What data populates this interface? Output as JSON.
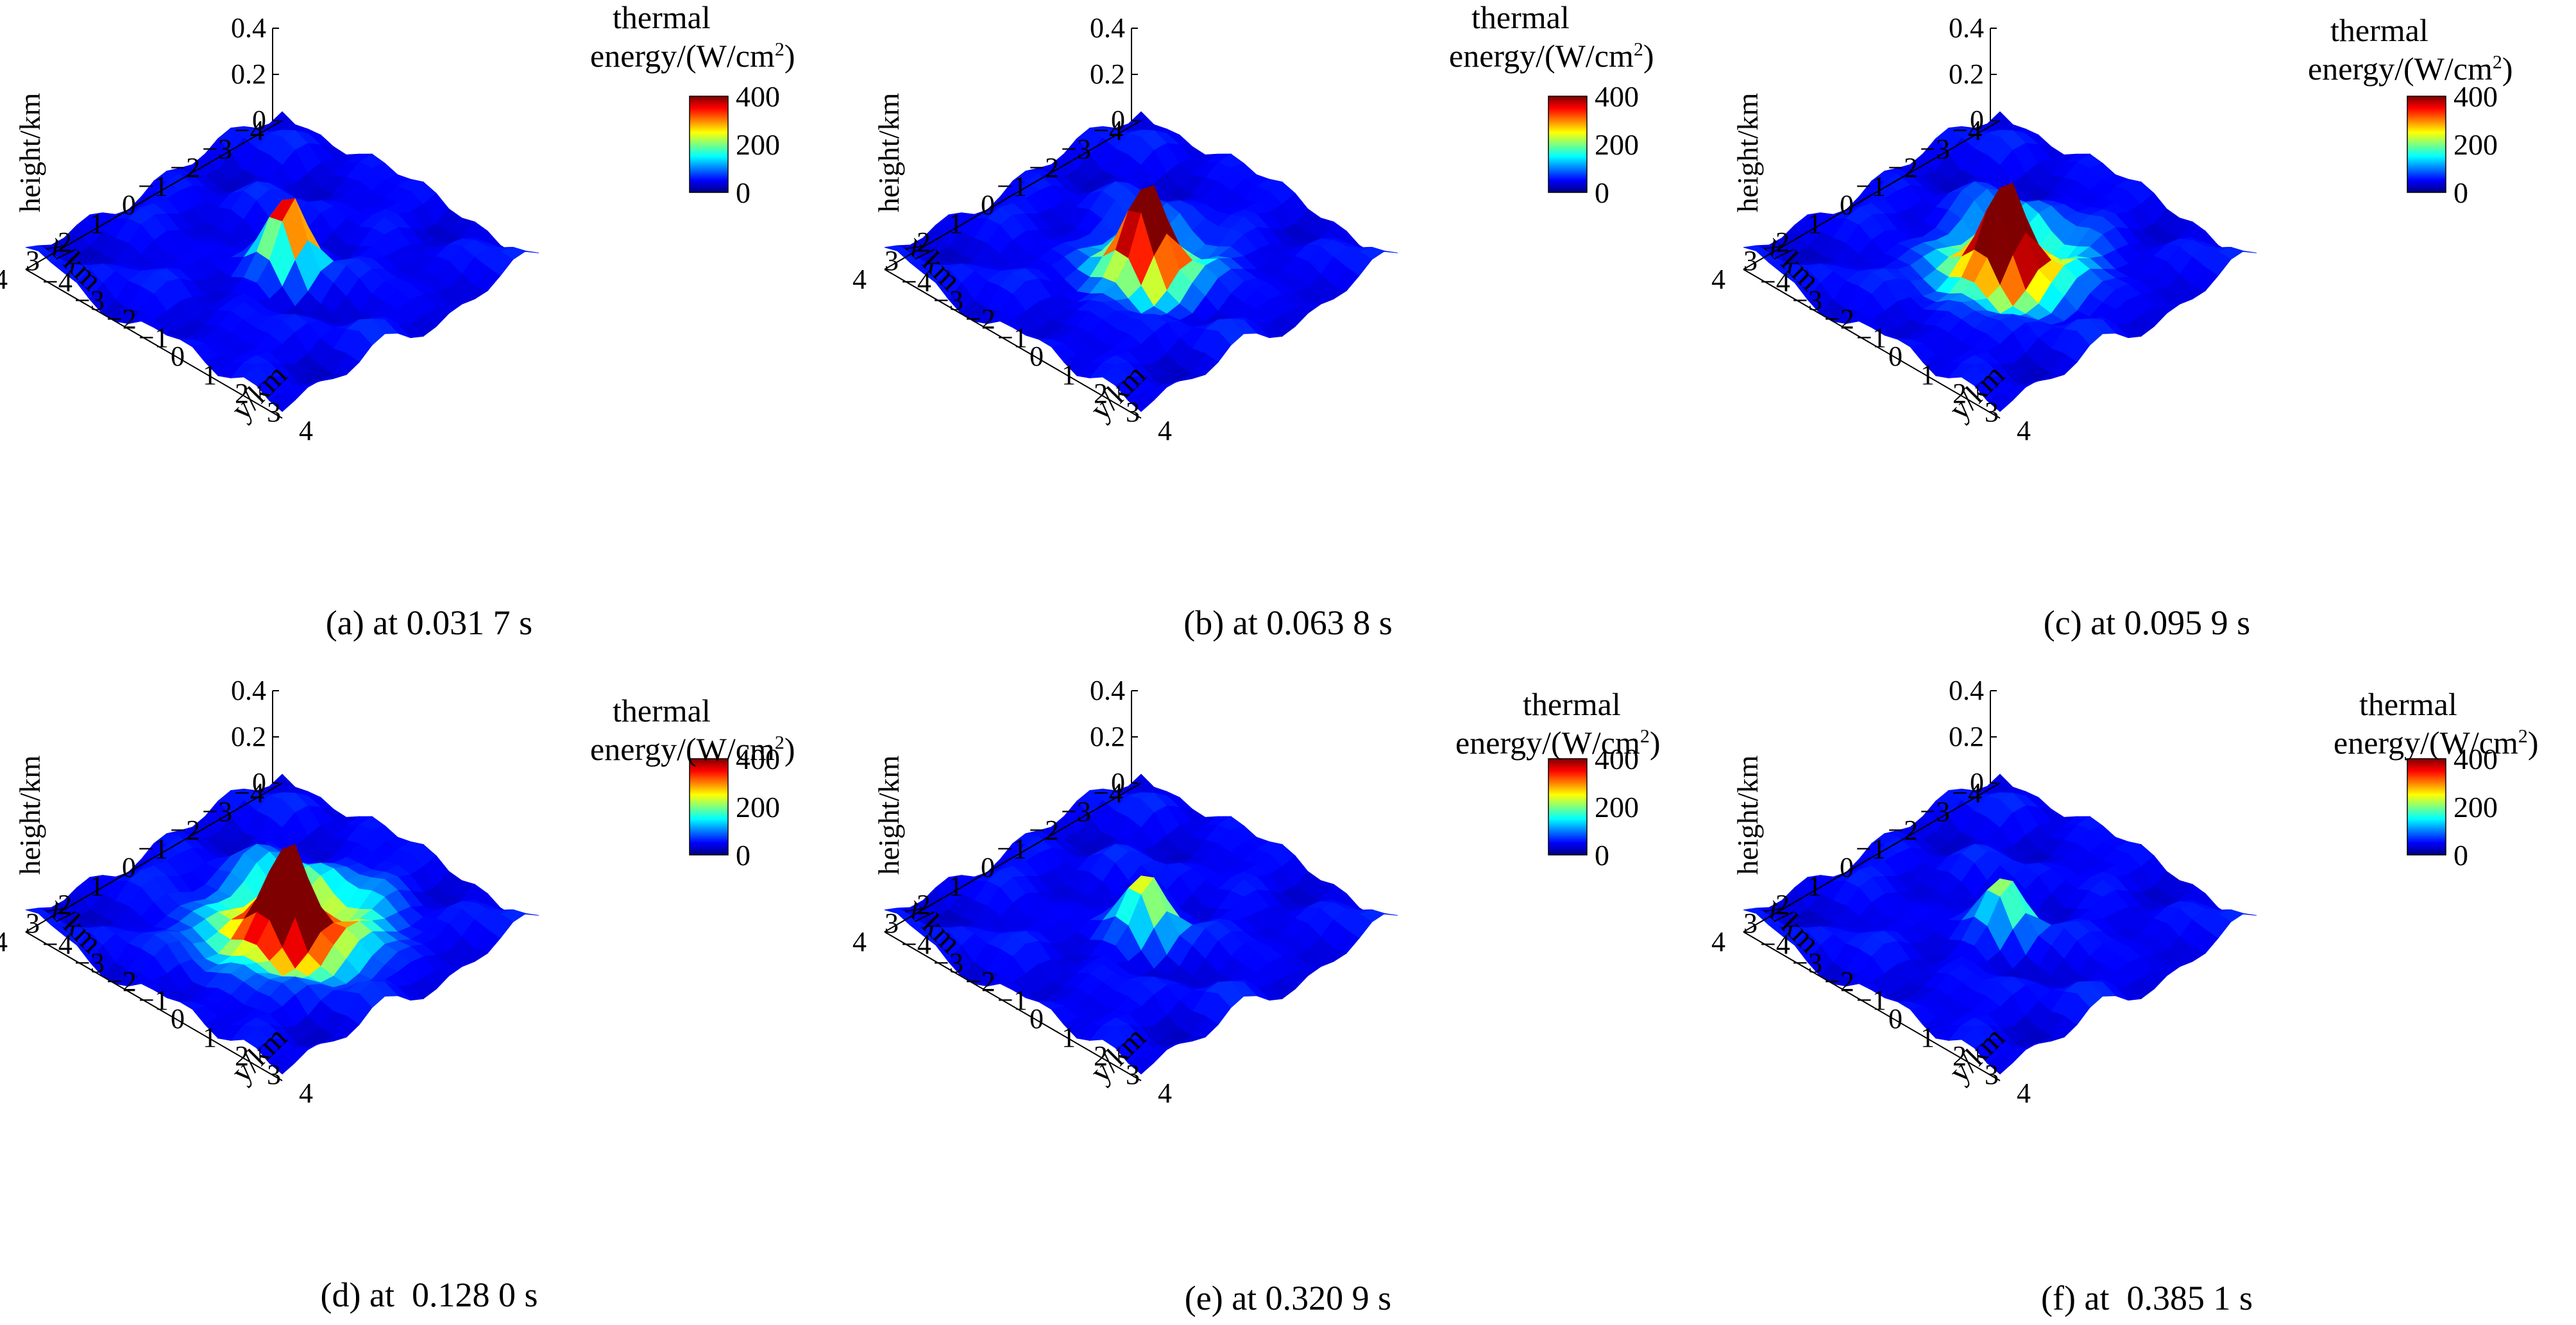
{
  "colorbar": {
    "title_line1": "thermal",
    "title_line2": "energy/(W/cm",
    "title_sup": "2",
    "title_close": ")",
    "ticks": [
      "400",
      "200",
      "0"
    ],
    "min": 0,
    "max": 400,
    "colormap": [
      "#00007f",
      "#0000ff",
      "#007fff",
      "#00ffff",
      "#7fff7f",
      "#ffff00",
      "#ff7f00",
      "#ff0000",
      "#7f0000"
    ]
  },
  "axes": {
    "x_label": "x/km",
    "y_label": "y/km",
    "z_label": "height/km",
    "x_ticks": [
      "−4",
      "−3",
      "−2",
      "−1",
      "0",
      "1",
      "2",
      "3",
      "4"
    ],
    "y_ticks": [
      "−4",
      "−3",
      "−2",
      "−1",
      "0",
      "1",
      "2",
      "3",
      "4"
    ],
    "z_ticks": [
      "0",
      "0.2",
      "0.4"
    ]
  },
  "chart_data": [
    {
      "type": "surface",
      "caption": "(a) at 0.031 7 s",
      "xlim": [
        -4,
        4
      ],
      "ylim": [
        -4,
        4
      ],
      "zlim": [
        0,
        0.4
      ],
      "clim": [
        0,
        400
      ],
      "hotspot_peak": 330,
      "hotspot_radius_km": 0.8
    },
    {
      "type": "surface",
      "caption": "(b) at 0.063 8 s",
      "xlim": [
        -4,
        4
      ],
      "ylim": [
        -4,
        4
      ],
      "zlim": [
        0,
        0.4
      ],
      "clim": [
        0,
        400
      ],
      "hotspot_peak": 440,
      "hotspot_radius_km": 1.3
    },
    {
      "type": "surface",
      "caption": "(c) at 0.095 9 s",
      "xlim": [
        -4,
        4
      ],
      "ylim": [
        -4,
        4
      ],
      "zlim": [
        0,
        0.4
      ],
      "clim": [
        0,
        400
      ],
      "hotspot_peak": 460,
      "hotspot_radius_km": 1.6
    },
    {
      "type": "surface",
      "caption": "(d) at  0.128 0 s",
      "xlim": [
        -4,
        4
      ],
      "ylim": [
        -4,
        4
      ],
      "zlim": [
        0,
        0.4
      ],
      "clim": [
        0,
        400
      ],
      "hotspot_peak": 470,
      "hotspot_radius_km": 1.9
    },
    {
      "type": "surface",
      "caption": "(e) at 0.320 9 s",
      "xlim": [
        -4,
        4
      ],
      "ylim": [
        -4,
        4
      ],
      "zlim": [
        0,
        0.4
      ],
      "clim": [
        0,
        400
      ],
      "hotspot_peak": 190,
      "hotspot_radius_km": 0.9
    },
    {
      "type": "surface",
      "caption": "(f) at  0.385 1 s",
      "xlim": [
        -4,
        4
      ],
      "ylim": [
        -4,
        4
      ],
      "zlim": [
        0,
        0.4
      ],
      "clim": [
        0,
        400
      ],
      "hotspot_peak": 160,
      "hotspot_radius_km": 0.8
    }
  ]
}
